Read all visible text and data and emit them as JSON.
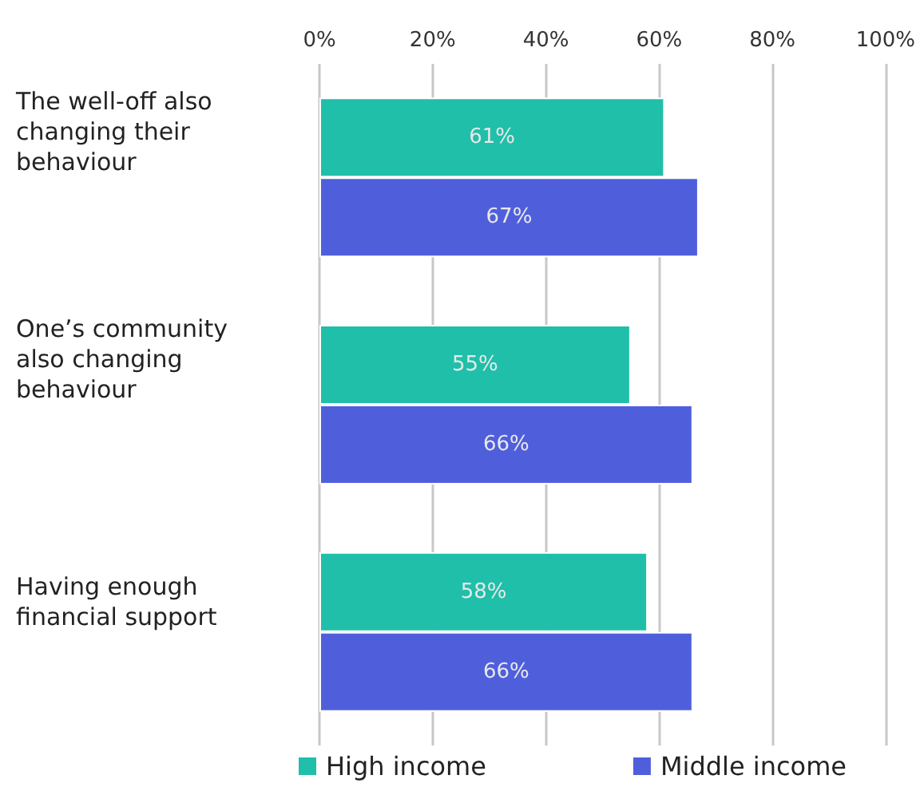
{
  "chart_data": {
    "type": "bar",
    "orientation": "horizontal",
    "categories": [
      "The well-off also changing their behaviour",
      "One’s community also changing behaviour",
      "Having enough financial support"
    ],
    "series": [
      {
        "name": "High income",
        "color": "#1fbfa9",
        "values": [
          61,
          55,
          58
        ],
        "value_labels": [
          "61%",
          "55%",
          "58%"
        ]
      },
      {
        "name": "Middle income",
        "color": "#4f5fdc",
        "values": [
          67,
          66,
          66
        ],
        "value_labels": [
          "67%",
          "66%",
          "66%"
        ]
      }
    ],
    "xlim": [
      0,
      100
    ],
    "xticks": [
      {
        "value": 0,
        "label": "0%"
      },
      {
        "value": 20,
        "label": "20%"
      },
      {
        "value": 40,
        "label": "40%"
      },
      {
        "value": 60,
        "label": "60%"
      },
      {
        "value": 80,
        "label": "80%"
      },
      {
        "value": 100,
        "label": "100%"
      }
    ],
    "grid": "x",
    "legend": "bottom"
  }
}
